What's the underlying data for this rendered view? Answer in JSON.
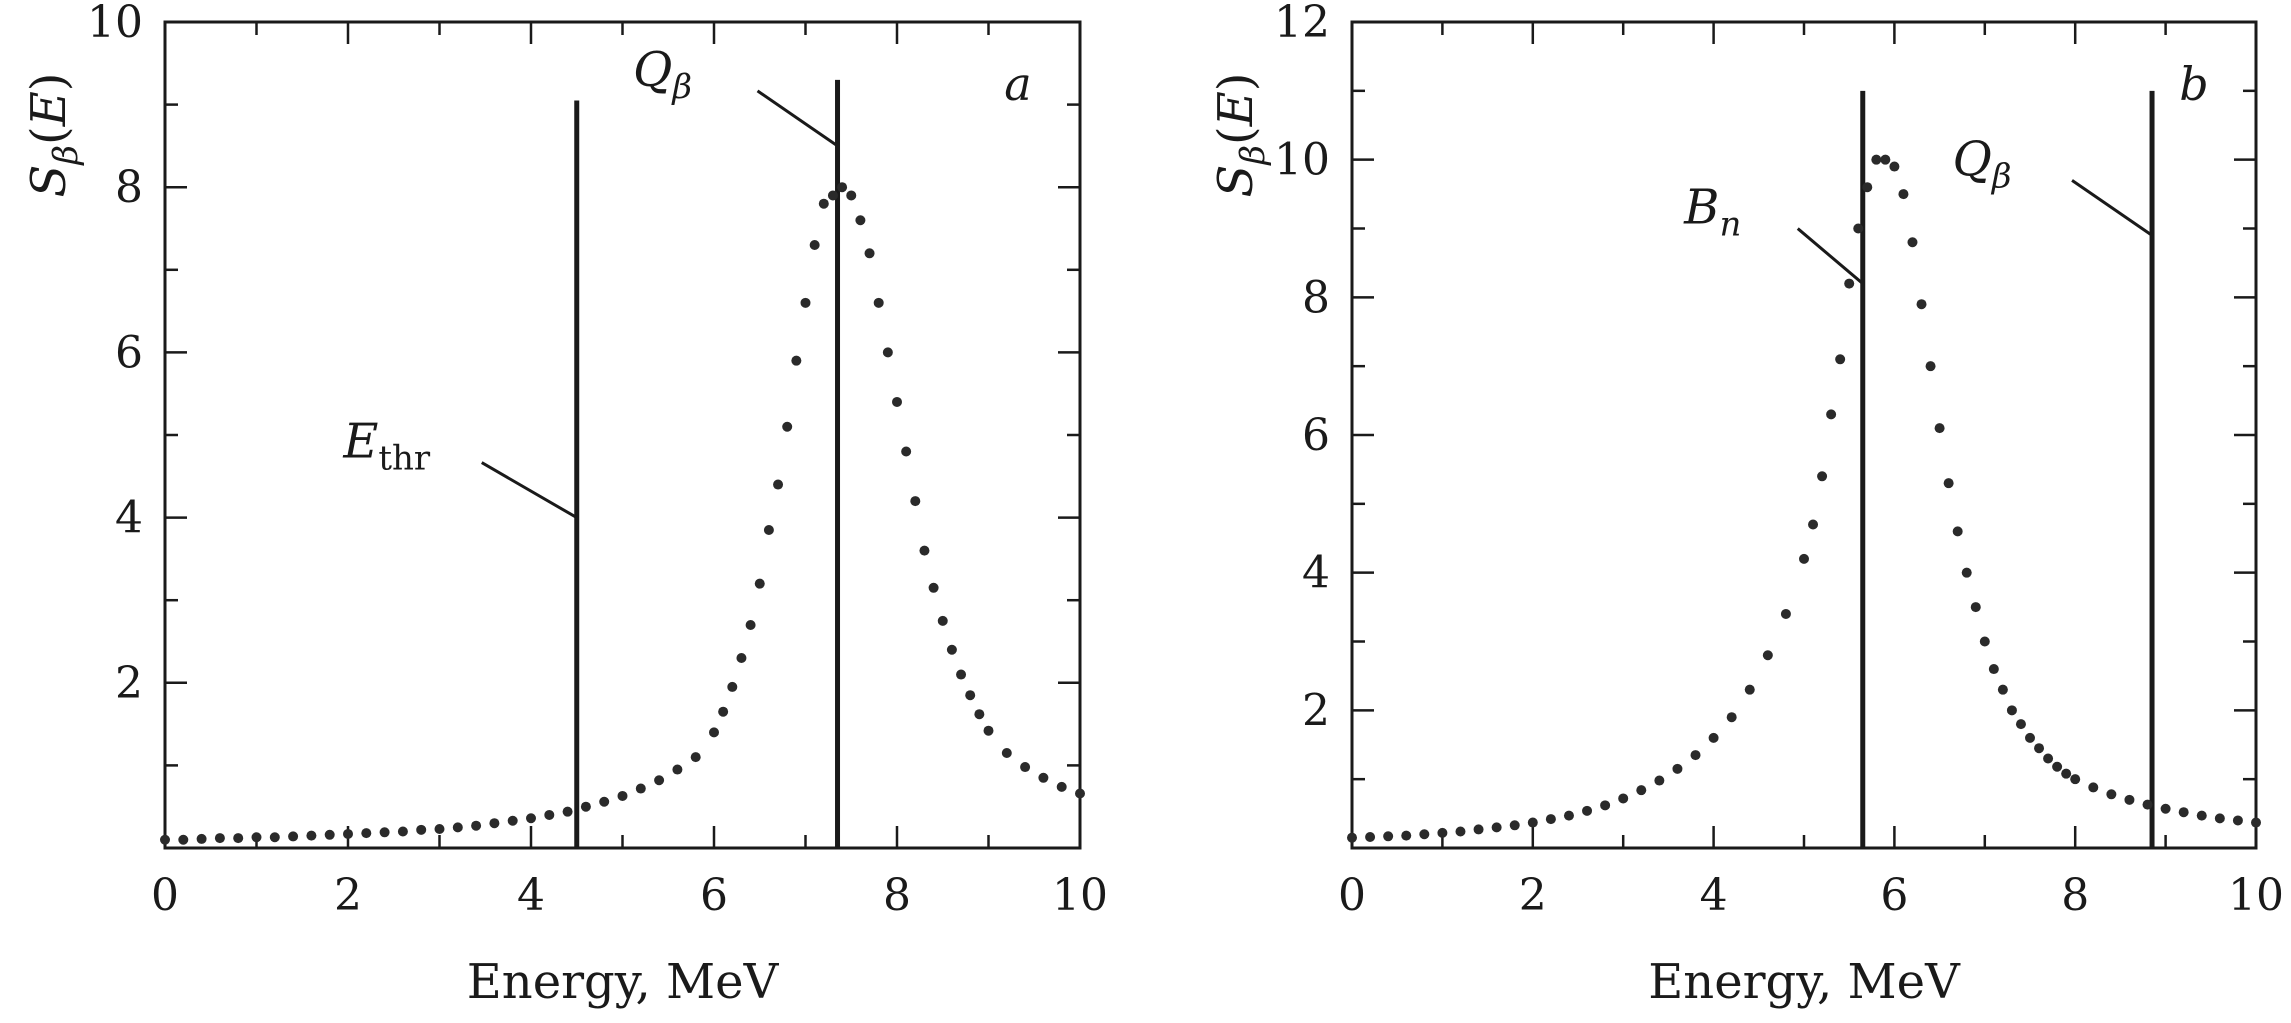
{
  "chart_data": [
    {
      "type": "scatter",
      "panel_label": "a",
      "title": "",
      "xlabel": "Energy, MeV",
      "ylabel": {
        "main": "S",
        "sub": "β",
        "arg": "(E)"
      },
      "xlim": [
        0,
        10
      ],
      "ylim": [
        0,
        10
      ],
      "x_ticks": [
        "0",
        "2",
        "4",
        "6",
        "8",
        "10"
      ],
      "y_ticks": [
        "2",
        "4",
        "6",
        "8",
        "10"
      ],
      "grid": false,
      "markers": [
        {
          "name": "E",
          "sub": "thr",
          "x": 4.5,
          "y_top": 9.05
        },
        {
          "name": "Q",
          "sub": "β",
          "x": 7.35,
          "y_top": 9.3
        }
      ],
      "series": [
        {
          "x": [
            0.0,
            0.2,
            0.4,
            0.6,
            0.8,
            1.0,
            1.2,
            1.4,
            1.6,
            1.8,
            2.0,
            2.2,
            2.4,
            2.6,
            2.8,
            3.0,
            3.2,
            3.4,
            3.6,
            3.8,
            4.0,
            4.2,
            4.4,
            4.6,
            4.8,
            5.0,
            5.2,
            5.4,
            5.6,
            5.8,
            6.0,
            6.1,
            6.2,
            6.3,
            6.4,
            6.5,
            6.6,
            6.7,
            6.8,
            6.9,
            7.0,
            7.1,
            7.2,
            7.3,
            7.4,
            7.5,
            7.6,
            7.7,
            7.8,
            7.9,
            8.0,
            8.1,
            8.2,
            8.3,
            8.4,
            8.5,
            8.6,
            8.7,
            8.8,
            8.9,
            9.0,
            9.2,
            9.4,
            9.6,
            9.8,
            10.0
          ],
          "y": [
            0.1,
            0.1,
            0.11,
            0.12,
            0.12,
            0.13,
            0.13,
            0.14,
            0.15,
            0.16,
            0.17,
            0.18,
            0.19,
            0.2,
            0.22,
            0.23,
            0.25,
            0.27,
            0.3,
            0.33,
            0.36,
            0.4,
            0.44,
            0.5,
            0.56,
            0.63,
            0.72,
            0.82,
            0.95,
            1.1,
            1.4,
            1.65,
            1.95,
            2.3,
            2.7,
            3.2,
            3.85,
            4.4,
            5.1,
            5.9,
            6.6,
            7.3,
            7.8,
            7.9,
            8.0,
            7.9,
            7.6,
            7.2,
            6.6,
            6.0,
            5.4,
            4.8,
            4.2,
            3.6,
            3.15,
            2.75,
            2.4,
            2.1,
            1.85,
            1.62,
            1.42,
            1.15,
            0.98,
            0.85,
            0.74,
            0.66
          ]
        }
      ]
    },
    {
      "type": "scatter",
      "panel_label": "b",
      "title": "",
      "xlabel": "Energy, MeV",
      "ylabel": {
        "main": "S",
        "sub": "β",
        "arg": "(E)"
      },
      "xlim": [
        0,
        10
      ],
      "ylim": [
        0,
        12
      ],
      "x_ticks": [
        "0",
        "2",
        "4",
        "6",
        "8",
        "10"
      ],
      "y_ticks": [
        "2",
        "4",
        "6",
        "8",
        "10",
        "12"
      ],
      "grid": false,
      "markers": [
        {
          "name": "B",
          "sub": "n",
          "x": 5.65,
          "y_top": 11.0
        },
        {
          "name": "Q",
          "sub": "β",
          "x": 8.85,
          "y_top": 11.0
        }
      ],
      "series": [
        {
          "x": [
            0.0,
            0.2,
            0.4,
            0.6,
            0.8,
            1.0,
            1.2,
            1.4,
            1.6,
            1.8,
            2.0,
            2.2,
            2.4,
            2.6,
            2.8,
            3.0,
            3.2,
            3.4,
            3.6,
            3.8,
            4.0,
            4.2,
            4.4,
            4.6,
            4.8,
            5.0,
            5.1,
            5.2,
            5.3,
            5.4,
            5.5,
            5.6,
            5.7,
            5.8,
            5.9,
            6.0,
            6.1,
            6.2,
            6.3,
            6.4,
            6.5,
            6.6,
            6.7,
            6.8,
            6.9,
            7.0,
            7.1,
            7.2,
            7.3,
            7.4,
            7.5,
            7.6,
            7.7,
            7.8,
            7.9,
            8.0,
            8.2,
            8.4,
            8.6,
            8.8,
            9.0,
            9.2,
            9.4,
            9.6,
            9.8,
            10.0
          ],
          "y": [
            0.15,
            0.16,
            0.17,
            0.18,
            0.2,
            0.22,
            0.24,
            0.27,
            0.3,
            0.33,
            0.37,
            0.42,
            0.47,
            0.54,
            0.62,
            0.72,
            0.84,
            0.98,
            1.15,
            1.35,
            1.6,
            1.9,
            2.3,
            2.8,
            3.4,
            4.2,
            4.7,
            5.4,
            6.3,
            7.1,
            8.2,
            9.0,
            9.6,
            10.0,
            10.0,
            9.9,
            9.5,
            8.8,
            7.9,
            7.0,
            6.1,
            5.3,
            4.6,
            4.0,
            3.5,
            3.0,
            2.6,
            2.3,
            2.0,
            1.8,
            1.6,
            1.45,
            1.3,
            1.18,
            1.08,
            1.0,
            0.88,
            0.78,
            0.7,
            0.63,
            0.57,
            0.52,
            0.47,
            0.43,
            0.4,
            0.37
          ]
        }
      ]
    }
  ]
}
